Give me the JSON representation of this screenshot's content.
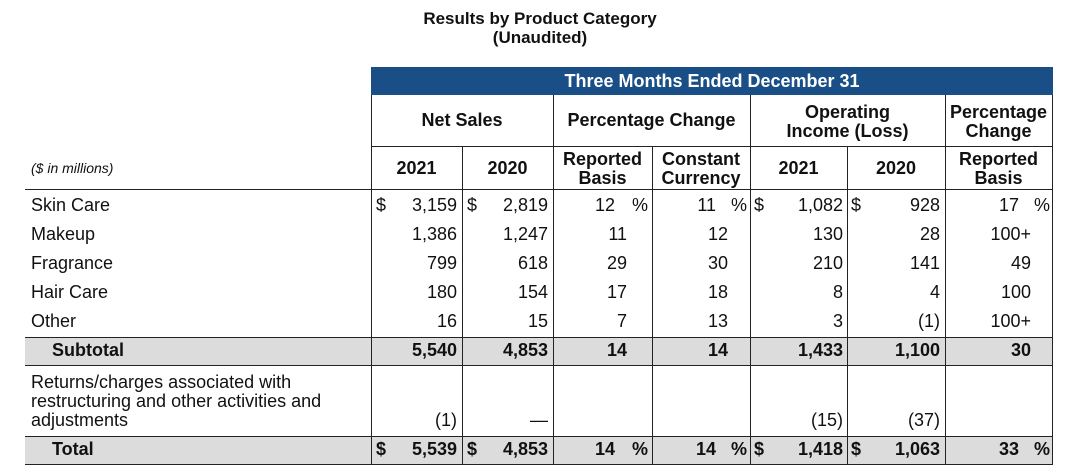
{
  "title": "Results by Product Category",
  "subtitle": "(Unaudited)",
  "period": "Three Months Ended December 31",
  "headers": {
    "net_sales": "Net Sales",
    "pct_change": "Percentage Change",
    "op_income_l1": "Operating",
    "op_income_l2": "Income (Loss)",
    "pct_change2_l1": "Percentage",
    "pct_change2_l2": "Change",
    "y2021": "2021",
    "y2020": "2020",
    "reported_l1": "Reported",
    "reported_l2": "Basis",
    "constant_l1": "Constant",
    "constant_l2": "Currency"
  },
  "units": "($ in millions)",
  "rows": [
    {
      "label": "Skin Care",
      "ns2021": "3,159",
      "ns2020": "2,819",
      "rep": "12",
      "con": "11",
      "oi2021": "1,082",
      "oi2020": "928",
      "pc": "17"
    },
    {
      "label": "Makeup",
      "ns2021": "1,386",
      "ns2020": "1,247",
      "rep": "11",
      "con": "12",
      "oi2021": "130",
      "oi2020": "28",
      "pc": "100+"
    },
    {
      "label": "Fragrance",
      "ns2021": "799",
      "ns2020": "618",
      "rep": "29",
      "con": "30",
      "oi2021": "210",
      "oi2020": "141",
      "pc": "49"
    },
    {
      "label": "Hair Care",
      "ns2021": "180",
      "ns2020": "154",
      "rep": "17",
      "con": "18",
      "oi2021": "8",
      "oi2020": "4",
      "pc": "100"
    },
    {
      "label": "Other",
      "ns2021": "16",
      "ns2020": "15",
      "rep": "7",
      "con": "13",
      "oi2021": "3",
      "oi2020": "(1)",
      "pc": "100+"
    }
  ],
  "subtotal": {
    "label": "Subtotal",
    "ns2021": "5,540",
    "ns2020": "4,853",
    "rep": "14",
    "con": "14",
    "oi2021": "1,433",
    "oi2020": "1,100",
    "pc": "30"
  },
  "returns": {
    "label_l1": "Returns/charges associated with",
    "label_l2": "restructuring and other activities and",
    "label_l3": "adjustments",
    "ns2021": "(1)",
    "ns2020": "—",
    "oi2021": "(15)",
    "oi2020": "(37)"
  },
  "total": {
    "label": "Total",
    "ns2021": "5,539",
    "ns2020": "4,853",
    "rep": "14",
    "con": "14",
    "oi2021": "1,418",
    "oi2020": "1,063",
    "pc": "33"
  },
  "symbols": {
    "dollar": "$",
    "percent": "%"
  }
}
